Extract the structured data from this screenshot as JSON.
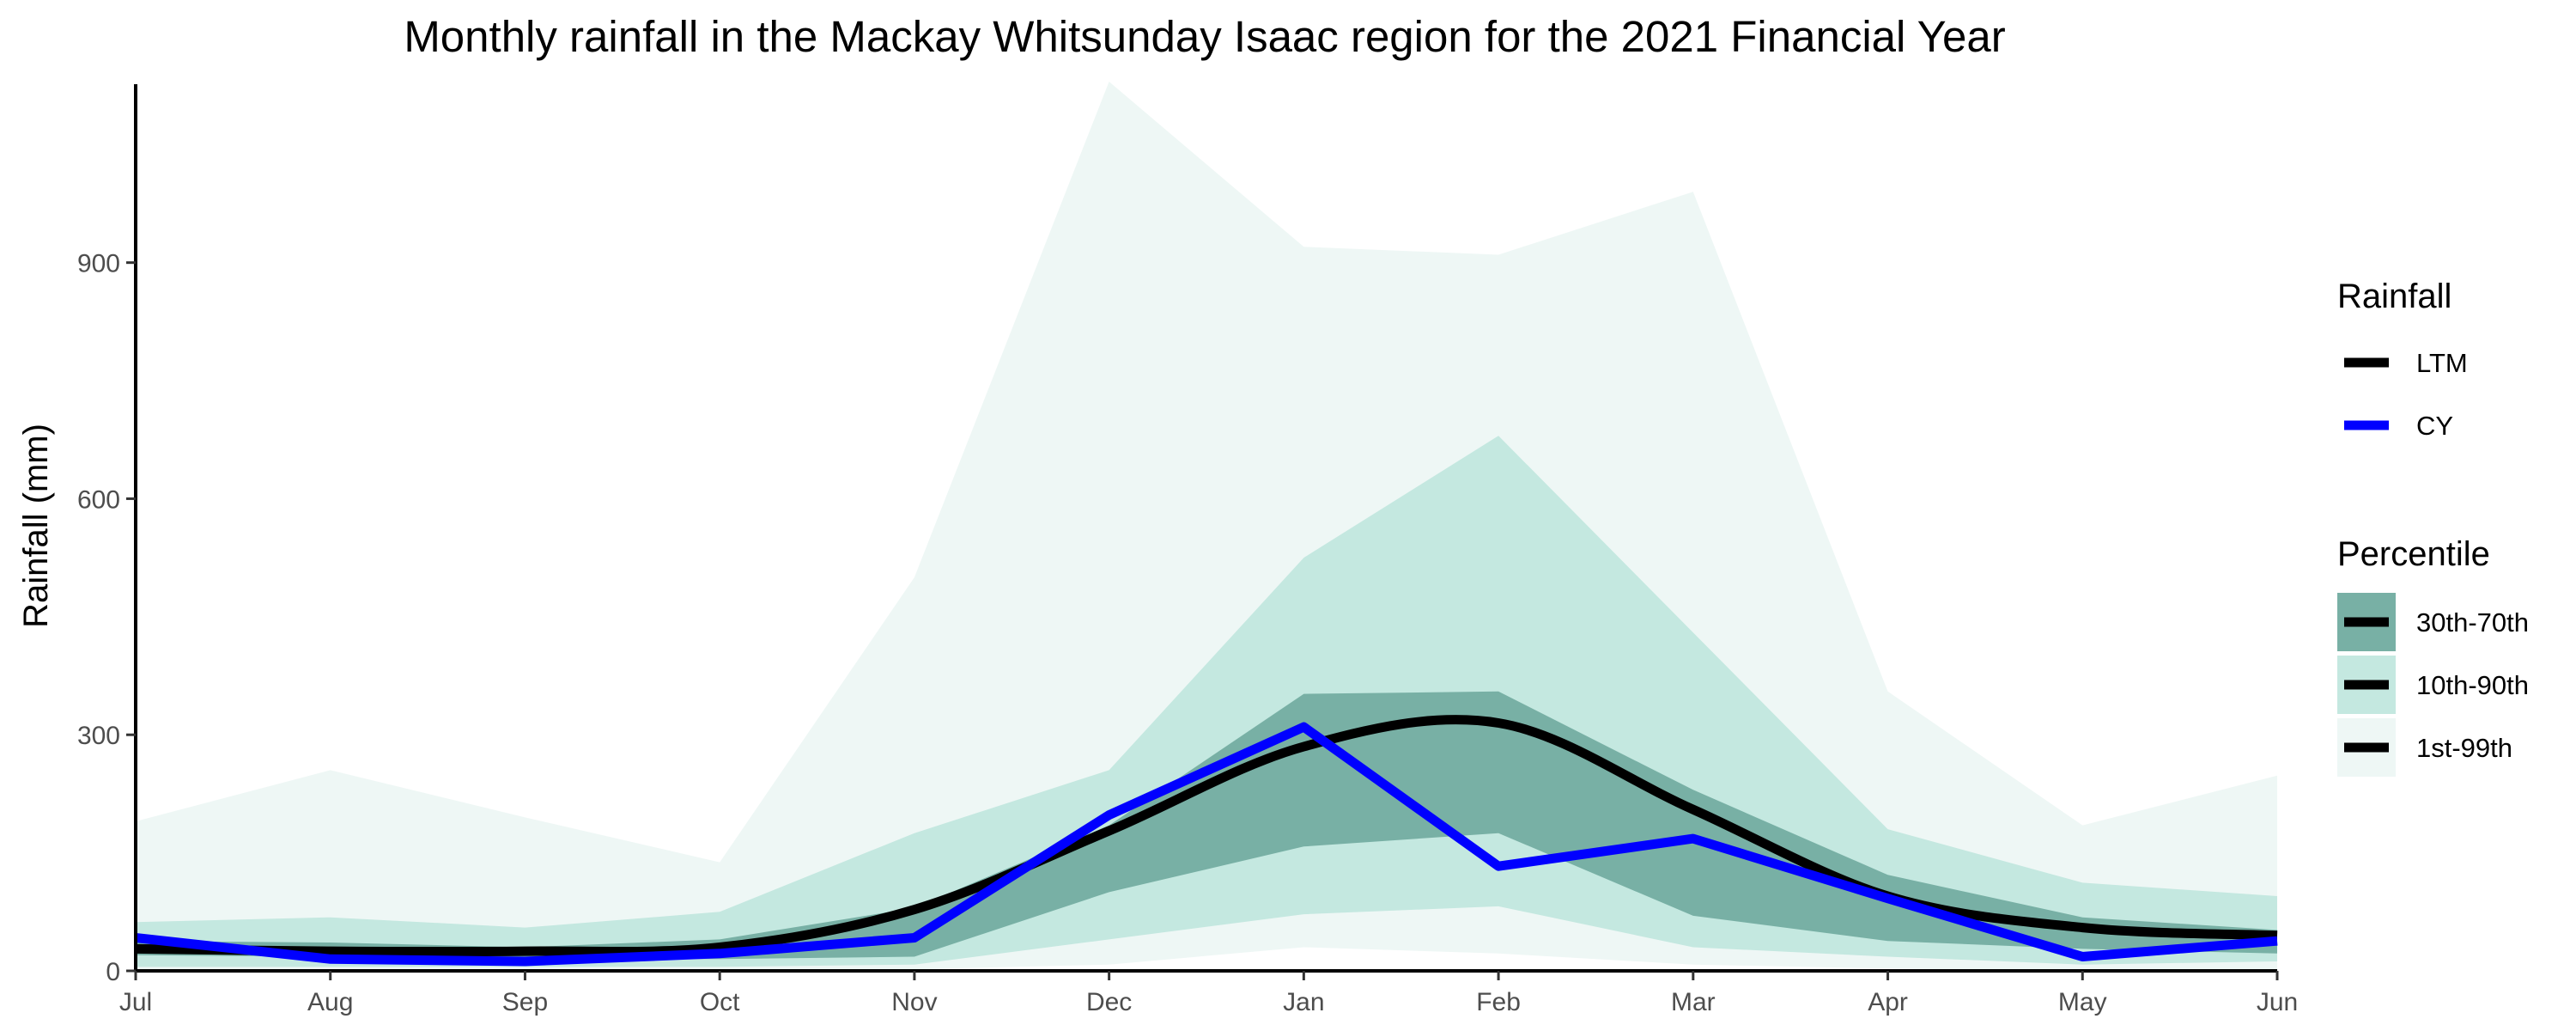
{
  "chart_data": {
    "type": "area",
    "title": "Monthly rainfall in the Mackay Whitsunday Isaac region for the 2021 Financial Year",
    "ylabel": "Rainfall (mm)",
    "xlabel": "",
    "categories": [
      "Jul",
      "Aug",
      "Sep",
      "Oct",
      "Nov",
      "Dec",
      "Jan",
      "Feb",
      "Mar",
      "Apr",
      "May",
      "Jun"
    ],
    "yticks": [
      0,
      300,
      600,
      900
    ],
    "ylim": [
      0,
      1130
    ],
    "grid": false,
    "bands": [
      {
        "name": "1st-99th",
        "color": "#eef7f5",
        "low": [
          0,
          0,
          0,
          0,
          2,
          8,
          30,
          22,
          8,
          3,
          0,
          0
        ],
        "high": [
          190,
          255,
          195,
          138,
          500,
          1130,
          920,
          910,
          990,
          355,
          185,
          248
        ]
      },
      {
        "name": "10th-90th",
        "color": "#c4e8e0",
        "low": [
          5,
          5,
          5,
          5,
          8,
          40,
          72,
          82,
          30,
          18,
          8,
          12
        ],
        "high": [
          62,
          68,
          55,
          75,
          175,
          255,
          525,
          680,
          430,
          180,
          112,
          95
        ]
      },
      {
        "name": "30th-70th",
        "color": "#78b0a5",
        "low": [
          20,
          18,
          15,
          15,
          18,
          100,
          158,
          175,
          70,
          38,
          28,
          22
        ],
        "high": [
          38,
          36,
          30,
          40,
          80,
          185,
          352,
          355,
          230,
          122,
          68,
          52
        ]
      }
    ],
    "series": [
      {
        "name": "LTM",
        "color": "#000000",
        "values": [
          28,
          25,
          25,
          30,
          78,
          178,
          285,
          315,
          205,
          95,
          55,
          45
        ]
      },
      {
        "name": "CY",
        "color": "#0000ff",
        "values": [
          42,
          15,
          12,
          22,
          42,
          198,
          310,
          133,
          168,
          92,
          18,
          38
        ]
      }
    ],
    "legend": {
      "placement": "right",
      "rainfall_title": "Rainfall",
      "percentile_title": "Percentile"
    }
  }
}
